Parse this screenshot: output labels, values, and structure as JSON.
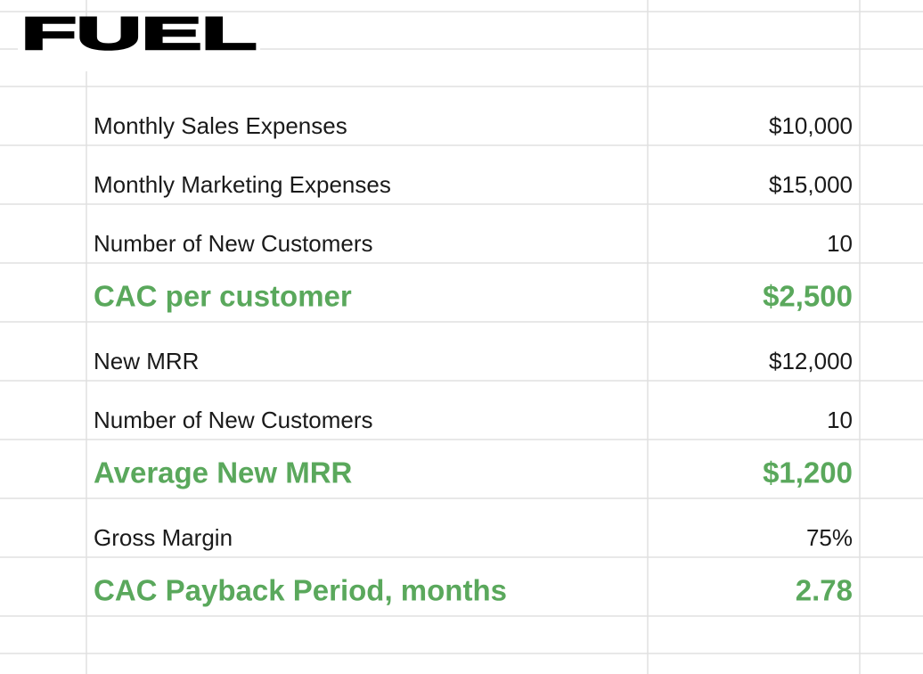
{
  "logo": "FUEL",
  "rows": [
    {
      "label": "Monthly Sales Expenses",
      "value": "$10,000",
      "highlight": false
    },
    {
      "label": "Monthly Marketing Expenses",
      "value": "$15,000",
      "highlight": false
    },
    {
      "label": "Number of New Customers",
      "value": "10",
      "highlight": false
    },
    {
      "label": "CAC per customer",
      "value": "$2,500",
      "highlight": true
    },
    {
      "label": "New MRR",
      "value": "$12,000",
      "highlight": false
    },
    {
      "label": "Number of New Customers",
      "value": "10",
      "highlight": false
    },
    {
      "label": "Average New MRR",
      "value": "$1,200",
      "highlight": true
    },
    {
      "label": "Gross Margin",
      "value": "75%",
      "highlight": false
    },
    {
      "label": "CAC Payback Period, months",
      "value": "2.78",
      "highlight": true
    }
  ]
}
